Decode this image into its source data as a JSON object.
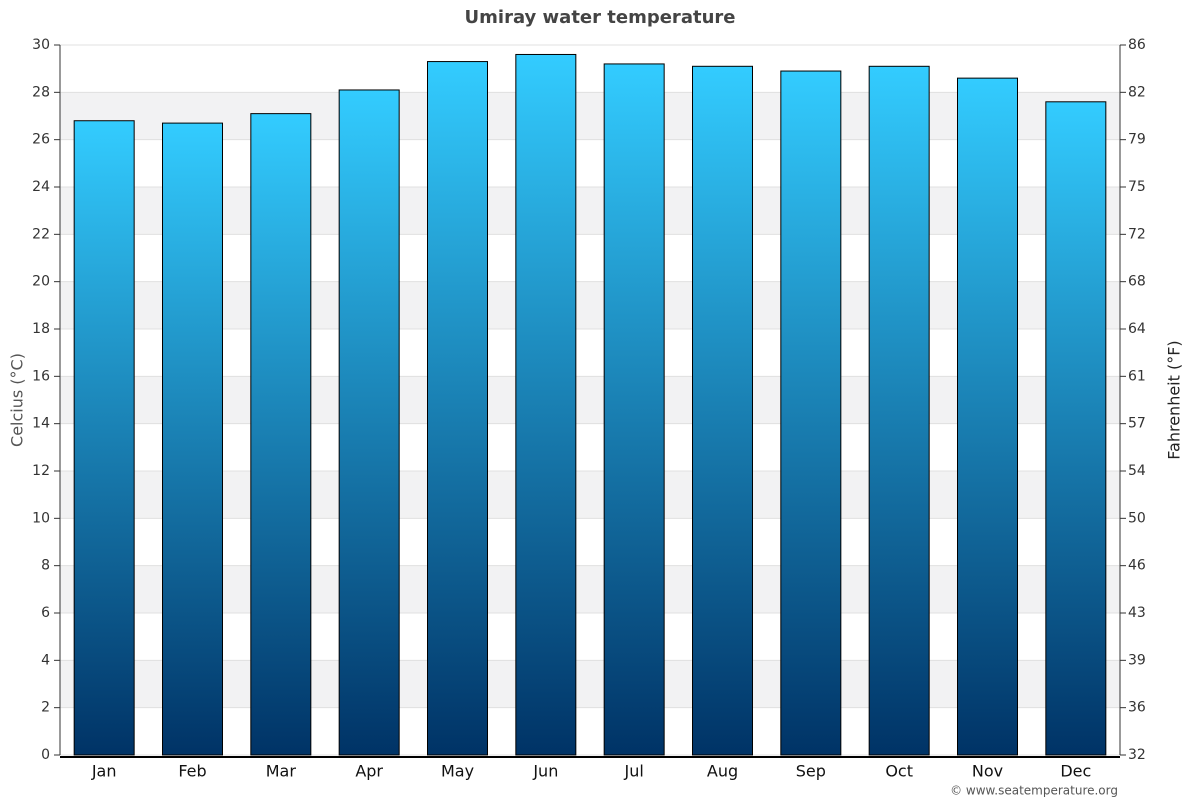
{
  "chart_data": {
    "type": "bar",
    "title": "Umiray water temperature",
    "categories": [
      "Jan",
      "Feb",
      "Mar",
      "Apr",
      "May",
      "Jun",
      "Jul",
      "Aug",
      "Sep",
      "Oct",
      "Nov",
      "Dec"
    ],
    "values": [
      26.8,
      26.7,
      27.1,
      28.1,
      29.3,
      29.6,
      29.2,
      29.1,
      28.9,
      29.1,
      28.6,
      27.6
    ],
    "color_top": "#33ccff",
    "color_bottom": "#003366",
    "ylabel": "Celcius (°C)",
    "y2label": "Fahrenheit (°F)",
    "ylim": [
      0,
      30
    ],
    "yticks": [
      0,
      2,
      4,
      6,
      8,
      10,
      12,
      14,
      16,
      18,
      20,
      22,
      24,
      26,
      28,
      30
    ],
    "y2lim": [
      32,
      86
    ],
    "y2ticks": [
      32,
      {
        "value": 35.6,
        "label": "36"
      },
      {
        "value": 39.2,
        "label": "39"
      },
      {
        "value": 42.8,
        "label": "43"
      },
      {
        "value": 46.4,
        "label": "46"
      },
      50,
      {
        "value": 53.6,
        "label": "54"
      },
      {
        "value": 57.2,
        "label": "57"
      },
      {
        "value": 60.8,
        "label": "61"
      },
      {
        "value": 64.4,
        "label": "64"
      },
      68,
      {
        "value": 71.6,
        "label": "72"
      },
      {
        "value": 75.2,
        "label": "75"
      },
      {
        "value": 78.8,
        "label": "79"
      },
      {
        "value": 82.4,
        "label": "82"
      },
      86
    ],
    "grid": true,
    "credit": "© www.seatemperature.org"
  }
}
